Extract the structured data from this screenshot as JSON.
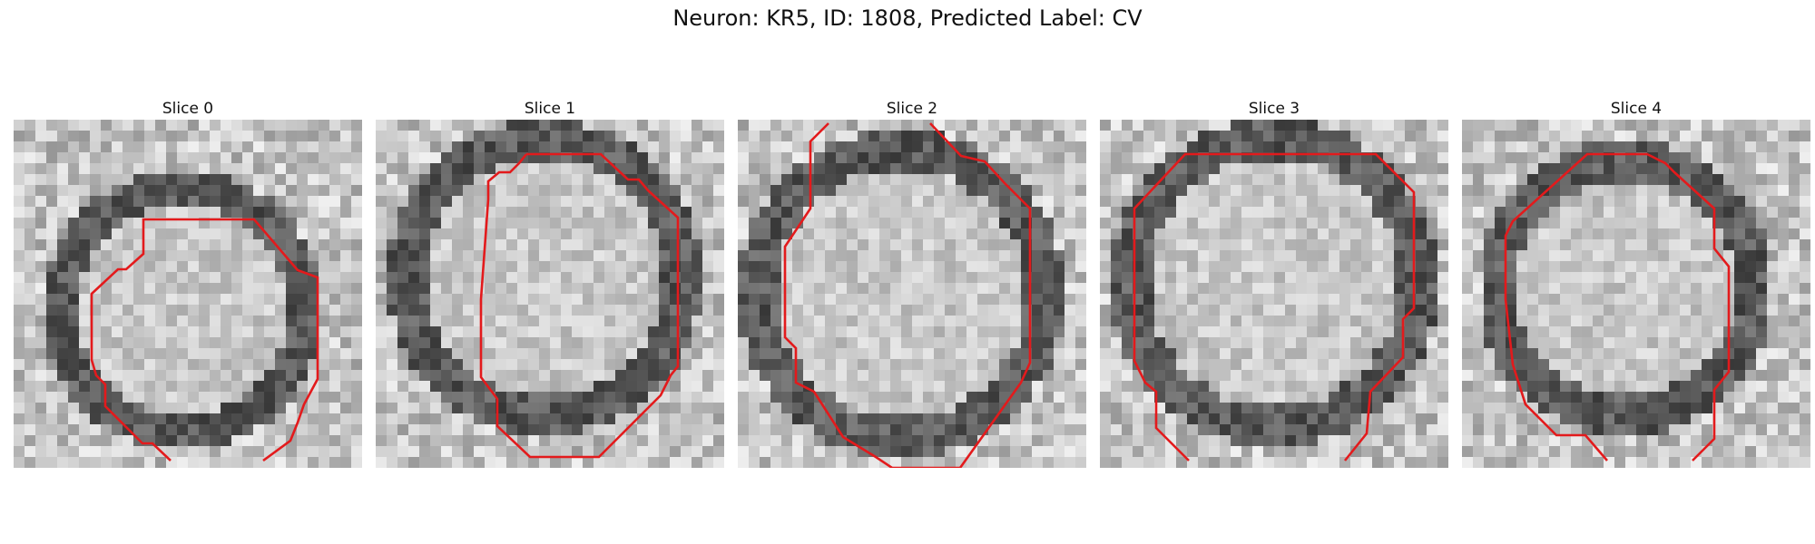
{
  "figure": {
    "title": "Neuron: KR5, ID: 1808, Predicted Label: CV"
  },
  "colors": {
    "contour": "#e31a1c",
    "background": "#ffffff"
  },
  "panels": [
    {
      "title": "Slice 0"
    },
    {
      "title": "Slice 1"
    },
    {
      "title": "Slice 2"
    },
    {
      "title": "Slice 3"
    },
    {
      "title": "Slice 4"
    }
  ]
}
